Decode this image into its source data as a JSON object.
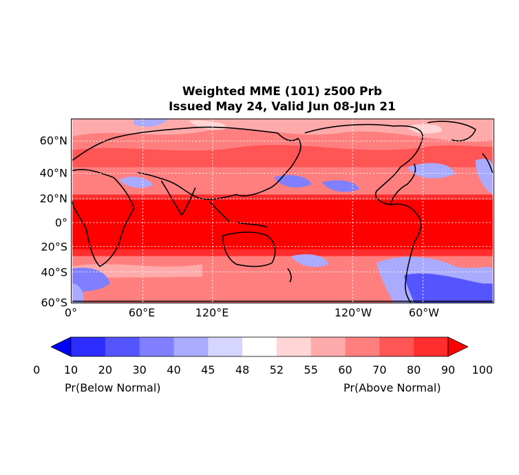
{
  "title_line1": "Weighted MME (101) z500 Prb",
  "title_line2": "Issued May 24, Valid Jun 08-Jun 21",
  "lat_labels": [
    "60°N",
    "40°N",
    "20°N",
    "0°",
    "20°S",
    "40°S",
    "60°S"
  ],
  "lon_labels": [
    "0°",
    "60°E",
    "120°E",
    "120°W",
    "60°W"
  ],
  "colorbar": {
    "ticks": [
      "0",
      "10",
      "20",
      "30",
      "40",
      "45",
      "48",
      "52",
      "55",
      "60",
      "70",
      "80",
      "90",
      "100"
    ],
    "colors": [
      "#0000ff",
      "#2d2dff",
      "#5555ff",
      "#7f7fff",
      "#aaaaff",
      "#d5d5ff",
      "#ffffff",
      "#ffd5d5",
      "#ffaaaa",
      "#ff7f7f",
      "#ff5555",
      "#ff2d2d",
      "#ff0000"
    ],
    "left_label": "Pr(Below Normal)",
    "right_label": "Pr(Above Normal)"
  },
  "map": {
    "projection": "equirectangular, 0°–360°E, 60°S–78°N",
    "gridlines": "dotted white"
  }
}
